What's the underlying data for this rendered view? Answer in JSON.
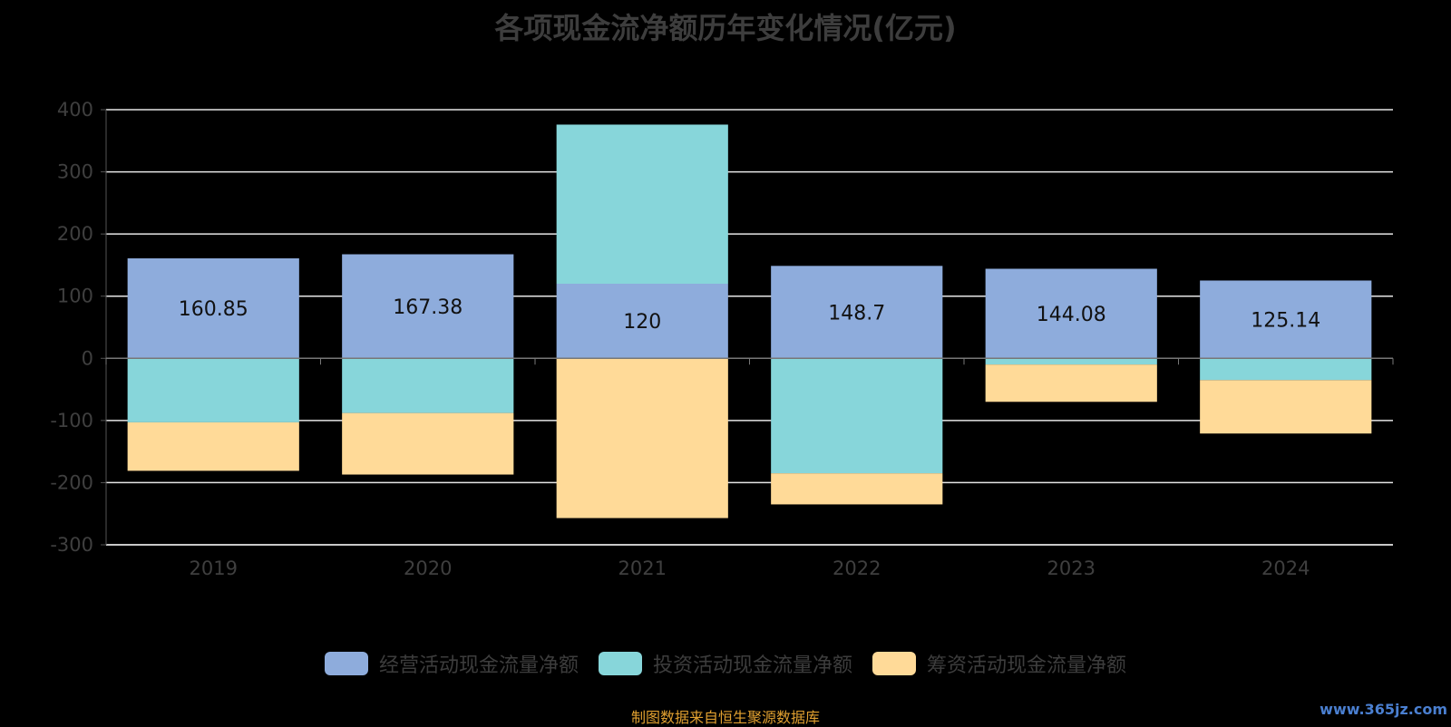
{
  "chart_data": {
    "type": "bar",
    "stacked": true,
    "title": "各项现金流净额历年变化情况(亿元)",
    "categories": [
      "2019",
      "2020",
      "2021",
      "2022",
      "2023",
      "2024"
    ],
    "ylim": [
      -300,
      400
    ],
    "yticks": [
      400,
      300,
      200,
      100,
      0,
      -100,
      -200,
      -300
    ],
    "grid": true,
    "legend_position": "bottom",
    "series": [
      {
        "name": "经营活动现金流量净额",
        "color": "#8eacdc",
        "values": [
          160.85,
          167.38,
          120,
          148.7,
          144.08,
          125.14
        ],
        "show_labels": true
      },
      {
        "name": "投资活动现金流量净额",
        "color": "#87d6da",
        "values": [
          -103,
          -88,
          256,
          -185,
          -10,
          -35
        ],
        "show_labels": false
      },
      {
        "name": "筹资活动现金流量净额",
        "color": "#ffda98",
        "values": [
          -78,
          -99,
          -257,
          -50,
          -60,
          -86
        ],
        "show_labels": false
      }
    ]
  },
  "footer": {
    "source": "制图数据来自恒生聚源数据库",
    "watermark": "www.365jz.com"
  }
}
